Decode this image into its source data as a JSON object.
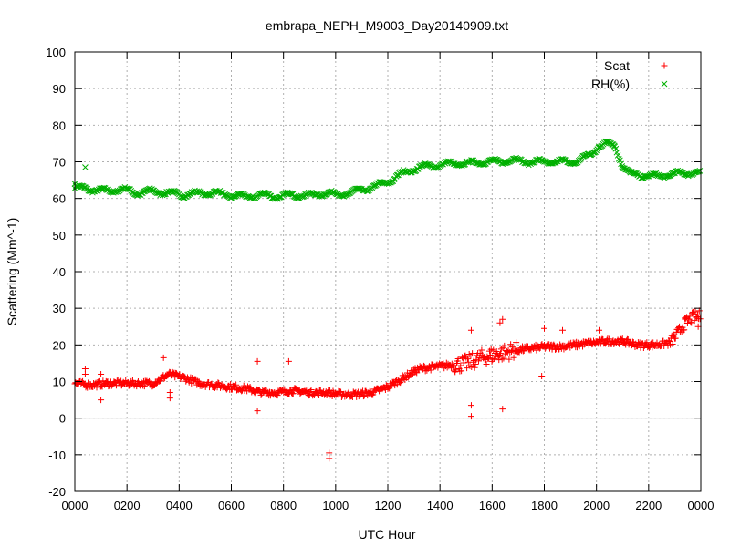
{
  "chart_data": {
    "type": "scatter",
    "title": "embrapa_NEPH_M9003_Day20140909.txt",
    "xlabel": "UTC Hour",
    "ylabel": "Scattering (Mm^-1)",
    "xlim": [
      0,
      2400
    ],
    "ylim": [
      -20,
      100
    ],
    "x_ticks": [
      "0000",
      "0200",
      "0400",
      "0600",
      "0800",
      "1000",
      "1200",
      "1400",
      "1600",
      "1800",
      "2000",
      "2200",
      "0000"
    ],
    "y_ticks": [
      "-20",
      "-10",
      "0",
      "10",
      "20",
      "30",
      "40",
      "50",
      "60",
      "70",
      "80",
      "90",
      "100"
    ],
    "grid": true,
    "legend_position": "top-right",
    "series": [
      {
        "name": "Scat",
        "color": "#ff0000",
        "marker": "plus",
        "x": [
          0,
          60,
          120,
          180,
          240,
          300,
          360,
          420,
          480,
          540,
          600,
          660,
          720,
          780,
          840,
          900,
          960,
          1020,
          1080,
          1140,
          1200,
          1260,
          1320,
          1380,
          1440,
          1500,
          1560,
          1620,
          1680,
          1740,
          1800,
          1860,
          1920,
          1980,
          2040,
          2100,
          2160,
          2220,
          2280,
          2300,
          2340,
          2370,
          2400
        ],
        "y": [
          9.5,
          9,
          9.5,
          9.5,
          9.5,
          9.5,
          12,
          11,
          9.5,
          9,
          8.5,
          8,
          7,
          7,
          7.5,
          7,
          7,
          6.5,
          6.5,
          7,
          8.5,
          11,
          13.5,
          14,
          14.5,
          15,
          16.5,
          17.5,
          18.5,
          19,
          19.5,
          19.5,
          20,
          20.5,
          21,
          21,
          20,
          20,
          20.5,
          22,
          26,
          27.5,
          28
        ]
      },
      {
        "name": "RH(%)",
        "color": "#00b000",
        "marker": "cross",
        "x": [
          0,
          60,
          120,
          180,
          240,
          300,
          360,
          420,
          480,
          540,
          600,
          660,
          720,
          780,
          840,
          900,
          960,
          1020,
          1080,
          1140,
          1200,
          1260,
          1320,
          1380,
          1440,
          1500,
          1560,
          1620,
          1680,
          1740,
          1800,
          1860,
          1920,
          1950,
          1980,
          2010,
          2040,
          2070,
          2100,
          2130,
          2160,
          2220,
          2280,
          2340,
          2400
        ],
        "y": [
          63,
          62.5,
          62,
          62.5,
          61.5,
          62,
          61.5,
          61,
          61.5,
          61.5,
          60.8,
          60.5,
          61,
          60.5,
          61,
          60.8,
          61.5,
          61,
          62,
          63,
          64.5,
          67,
          68.5,
          69,
          69.5,
          69.5,
          70,
          70,
          70.5,
          70,
          70,
          70,
          70,
          71,
          72,
          74.5,
          75,
          74.5,
          69,
          66.5,
          66.5,
          66,
          66.5,
          67,
          67
        ]
      }
    ],
    "outliers": {
      "Scat": [
        [
          40,
          13.5
        ],
        [
          40,
          12
        ],
        [
          100,
          5
        ],
        [
          100,
          12
        ],
        [
          340,
          16.5
        ],
        [
          365,
          5.5
        ],
        [
          365,
          7
        ],
        [
          700,
          15.5
        ],
        [
          700,
          2
        ],
        [
          820,
          15.5
        ],
        [
          975,
          -9.5
        ],
        [
          975,
          -11
        ],
        [
          1520,
          24
        ],
        [
          1520,
          3.5
        ],
        [
          1520,
          0.5
        ],
        [
          1630,
          26
        ],
        [
          1640,
          27
        ],
        [
          1640,
          2.5
        ],
        [
          1790,
          11.5
        ],
        [
          1800,
          24.5
        ],
        [
          1870,
          24
        ],
        [
          2010,
          24
        ],
        [
          2390,
          25
        ]
      ],
      "RH(%)": [
        [
          0,
          64
        ],
        [
          40,
          68.5
        ],
        [
          40,
          63
        ]
      ]
    }
  }
}
